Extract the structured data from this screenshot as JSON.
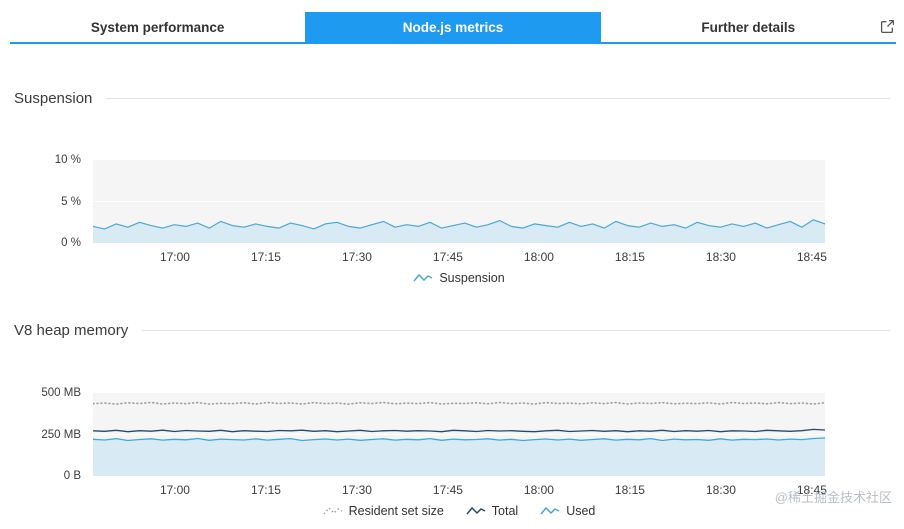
{
  "tabs": {
    "items": [
      {
        "label": "System performance"
      },
      {
        "label": "Node.js metrics"
      },
      {
        "label": "Further details"
      }
    ],
    "active_index": 1
  },
  "icons": {
    "external_link": "open-in-new-icon"
  },
  "colors": {
    "accent": "#1e9af0",
    "suspension_line": "#4aa8d8",
    "used_line": "#3fa7dc",
    "total_line": "#274b63",
    "rss_line": "#9aa0a6",
    "area_fill": "#d8eaf4",
    "plot_background": "#f5f5f5"
  },
  "watermark": "@稀土掘金技术社区",
  "chart_data": [
    {
      "type": "area",
      "title": "Suspension",
      "ylabel": "",
      "xlabel": "",
      "ylim": [
        0,
        10
      ],
      "grid": true,
      "legend_position": "bottom-center",
      "y_ticks": [
        {
          "label": "10 %",
          "f": 0
        },
        {
          "label": "5 %",
          "f": 0.5
        },
        {
          "label": "0 %",
          "f": 1
        }
      ],
      "x_ticks": [
        "17:00",
        "17:15",
        "17:30",
        "17:45",
        "18:00",
        "18:15",
        "18:30",
        "18:45"
      ],
      "x_tick_start": 0.112,
      "x_tick_step": 0.1243,
      "grid_fractions": [
        0.5
      ],
      "series": [
        {
          "name": "Suspension",
          "unit": "%",
          "color": "#4aa8d8",
          "width": 1.2,
          "fill": "#d8eaf4",
          "values": [
            2.0,
            1.7,
            2.3,
            1.9,
            2.5,
            2.1,
            1.8,
            2.2,
            2.0,
            2.4,
            1.8,
            2.6,
            2.1,
            1.9,
            2.3,
            2.0,
            1.8,
            2.4,
            2.1,
            1.7,
            2.3,
            2.5,
            2.0,
            1.8,
            2.2,
            2.6,
            1.9,
            2.2,
            2.0,
            2.5,
            1.8,
            2.1,
            2.4,
            1.9,
            2.2,
            2.7,
            2.0,
            1.8,
            2.3,
            2.1,
            1.9,
            2.5,
            2.0,
            2.3,
            1.8,
            2.6,
            2.1,
            1.9,
            2.4,
            2.0,
            2.2,
            1.8,
            2.5,
            2.1,
            1.9,
            2.3,
            2.0,
            2.4,
            1.8,
            2.2,
            2.6,
            1.9,
            2.8,
            2.3
          ]
        }
      ],
      "legend": [
        {
          "label": "Suspension",
          "color": "#4aa8d8",
          "dash": ""
        }
      ]
    },
    {
      "type": "line",
      "title": "V8 heap memory",
      "ylabel": "",
      "xlabel": "",
      "ylim": [
        0,
        500
      ],
      "grid": true,
      "legend_position": "bottom-center",
      "y_ticks": [
        {
          "label": "500 MB",
          "f": 0
        },
        {
          "label": "250 MB",
          "f": 0.5
        },
        {
          "label": "0 B",
          "f": 1
        }
      ],
      "x_ticks": [
        "17:00",
        "17:15",
        "17:30",
        "17:45",
        "18:00",
        "18:15",
        "18:30",
        "18:45"
      ],
      "x_tick_start": 0.112,
      "x_tick_step": 0.1243,
      "grid_fractions": [
        0.5
      ],
      "series": [
        {
          "name": "Resident set size",
          "unit": "MB",
          "color": "#9aa0a6",
          "width": 1.6,
          "dash": "1 3",
          "values": [
            436,
            440,
            433,
            441,
            437,
            443,
            434,
            439,
            436,
            442,
            433,
            438,
            436,
            441,
            434,
            443,
            437,
            440,
            434,
            442,
            436,
            439,
            433,
            441,
            437,
            443,
            435,
            439,
            436,
            442,
            434,
            438,
            437,
            441,
            435,
            443,
            436,
            440,
            433,
            442,
            437,
            439,
            435,
            441,
            436,
            443,
            434,
            440,
            437,
            442,
            435,
            438,
            436,
            441,
            434,
            443,
            437,
            440,
            435,
            442,
            436,
            439,
            434,
            441
          ]
        },
        {
          "name": "Total",
          "unit": "MB",
          "color": "#274b63",
          "width": 1.3,
          "values": [
            272,
            269,
            275,
            267,
            273,
            270,
            276,
            268,
            274,
            271,
            269,
            275,
            267,
            273,
            270,
            268,
            274,
            272,
            276,
            269,
            273,
            267,
            271,
            275,
            268,
            272,
            274,
            270,
            273,
            271,
            267,
            275,
            272,
            268,
            274,
            271,
            273,
            269,
            267,
            272,
            275,
            268,
            271,
            274,
            269,
            273,
            267,
            272,
            270,
            275,
            268,
            273,
            270,
            274,
            267,
            272,
            271,
            268,
            275,
            272,
            269,
            273,
            281,
            277
          ]
        },
        {
          "name": "Used",
          "unit": "MB",
          "color": "#3fa7dc",
          "width": 1.3,
          "fill": "#d8eaf4",
          "values": [
            221,
            217,
            225,
            214,
            220,
            224,
            216,
            221,
            218,
            226,
            215,
            222,
            219,
            217,
            224,
            216,
            221,
            225,
            214,
            219,
            223,
            217,
            222,
            215,
            220,
            224,
            216,
            221,
            218,
            225,
            215,
            222,
            218,
            220,
            224,
            216,
            221,
            214,
            219,
            223,
            217,
            222,
            215,
            220,
            224,
            216,
            221,
            218,
            225,
            214,
            222,
            218,
            220,
            215,
            224,
            216,
            221,
            219,
            223,
            217,
            222,
            219,
            226,
            229
          ]
        }
      ],
      "legend": [
        {
          "label": "Resident set size",
          "color": "#9aa0a6",
          "dash": "1.5 2.5"
        },
        {
          "label": "Total",
          "color": "#274b63",
          "dash": ""
        },
        {
          "label": "Used",
          "color": "#3fa7dc",
          "dash": ""
        }
      ]
    }
  ]
}
